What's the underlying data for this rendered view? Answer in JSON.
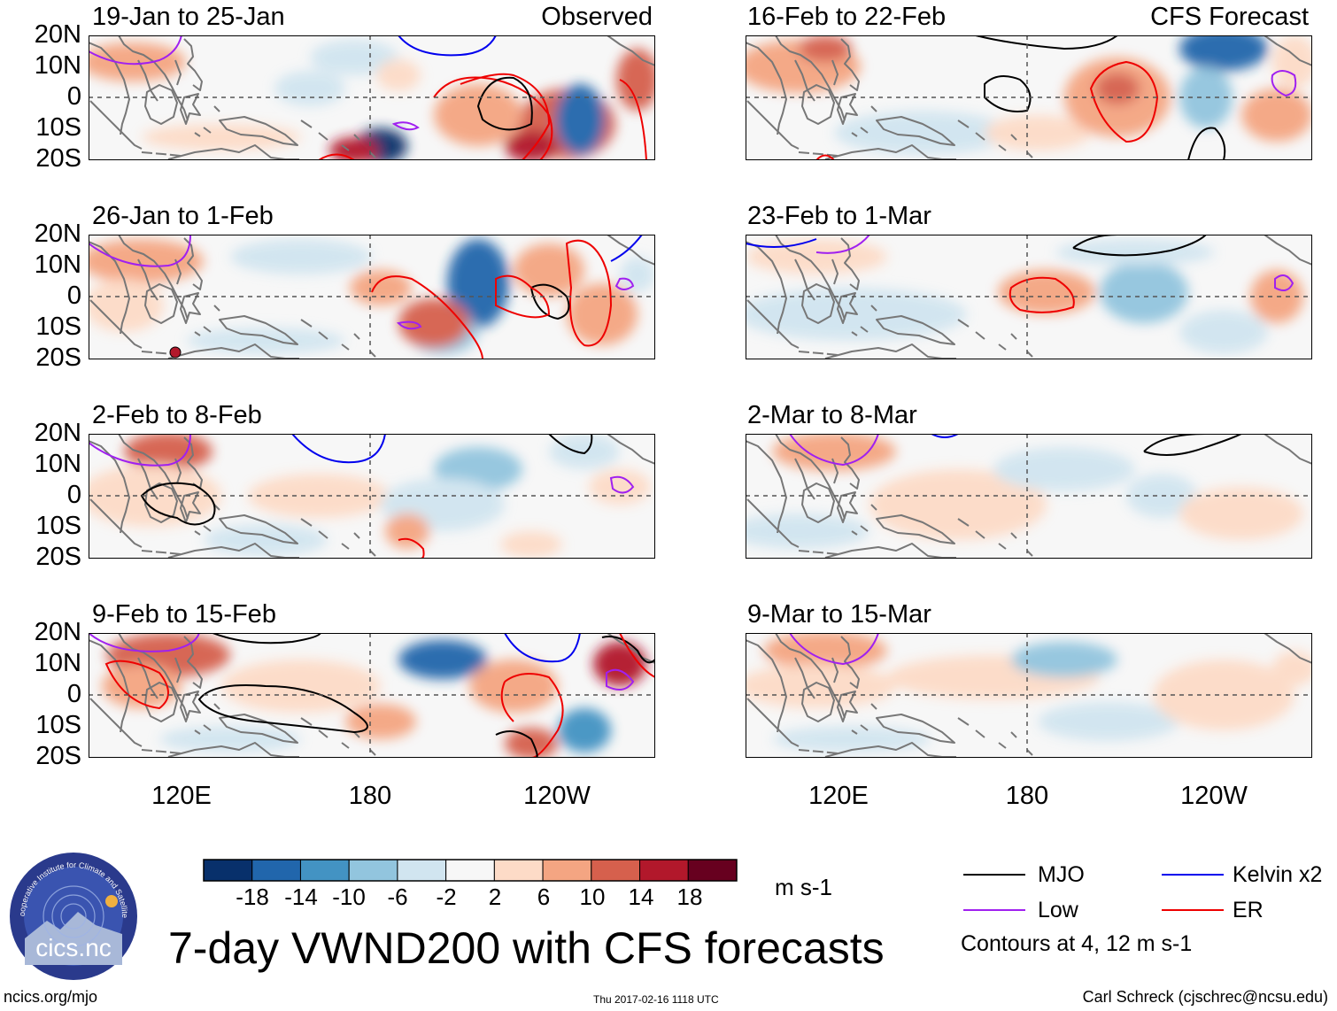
{
  "figure_title": "7-day VWND200 with CFS forecasts",
  "column_headers": {
    "observed": "Observed",
    "forecast": "CFS Forecast"
  },
  "observed_panels": [
    {
      "period": "19-Jan to 25-Jan"
    },
    {
      "period": "26-Jan to 1-Feb"
    },
    {
      "period": "2-Feb to 8-Feb"
    },
    {
      "period": "9-Feb to 15-Feb"
    }
  ],
  "forecast_panels": [
    {
      "period": "16-Feb to 22-Feb"
    },
    {
      "period": "23-Feb to 1-Mar"
    },
    {
      "period": "2-Mar to 8-Mar"
    },
    {
      "period": "9-Mar to 15-Mar"
    }
  ],
  "lat_labels": [
    "20N",
    "10N",
    "0",
    "10S",
    "20S"
  ],
  "lon_labels": [
    "120E",
    "180",
    "120W"
  ],
  "colorbar": {
    "ticks": [
      "-18",
      "-14",
      "-10",
      "-6",
      "-2",
      "2",
      "6",
      "10",
      "14",
      "18"
    ],
    "units": "m s-1",
    "colors": [
      "#08306b",
      "#2166ac",
      "#4393c3",
      "#92c5de",
      "#d1e5f0",
      "#f7f7f7",
      "#fddbc7",
      "#f4a582",
      "#d6604d",
      "#b2182b",
      "#67001f"
    ]
  },
  "legend": {
    "items": [
      {
        "label": "MJO",
        "color": "#000000"
      },
      {
        "label": "Kelvin x2",
        "color": "#0000ee"
      },
      {
        "label": "Low",
        "color": "#a020f0"
      },
      {
        "label": "ER",
        "color": "#ee0000"
      }
    ],
    "note": "Contours at 4, 12 m s-1"
  },
  "logo": {
    "text": "cics.nc",
    "ring_text": "Cooperative Institute for Climate and Satellites"
  },
  "footer": {
    "website": "ncics.org/mjo",
    "timestamp": "Thu 2017-02-16 1118 UTC",
    "author": "Carl Schreck (cjschrec@ncsu.edu)"
  }
}
